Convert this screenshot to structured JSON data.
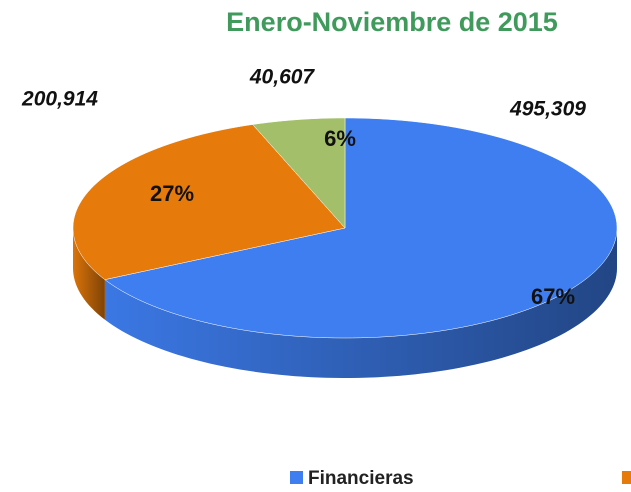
{
  "chart_data": {
    "type": "pie",
    "title": "Enero-Noviembre de 2015",
    "categories": [
      "Financieras",
      null,
      null
    ],
    "values": [
      495309,
      200914,
      40607
    ],
    "value_labels": [
      "495,309",
      "200,914",
      "40,607"
    ],
    "percents": [
      67,
      27,
      6
    ],
    "percent_labels": [
      "67%",
      "27%",
      "6%"
    ],
    "colors": [
      "#3e7ef0",
      "#e67a0a",
      "#a3bf6a"
    ],
    "legend": "bottom"
  }
}
